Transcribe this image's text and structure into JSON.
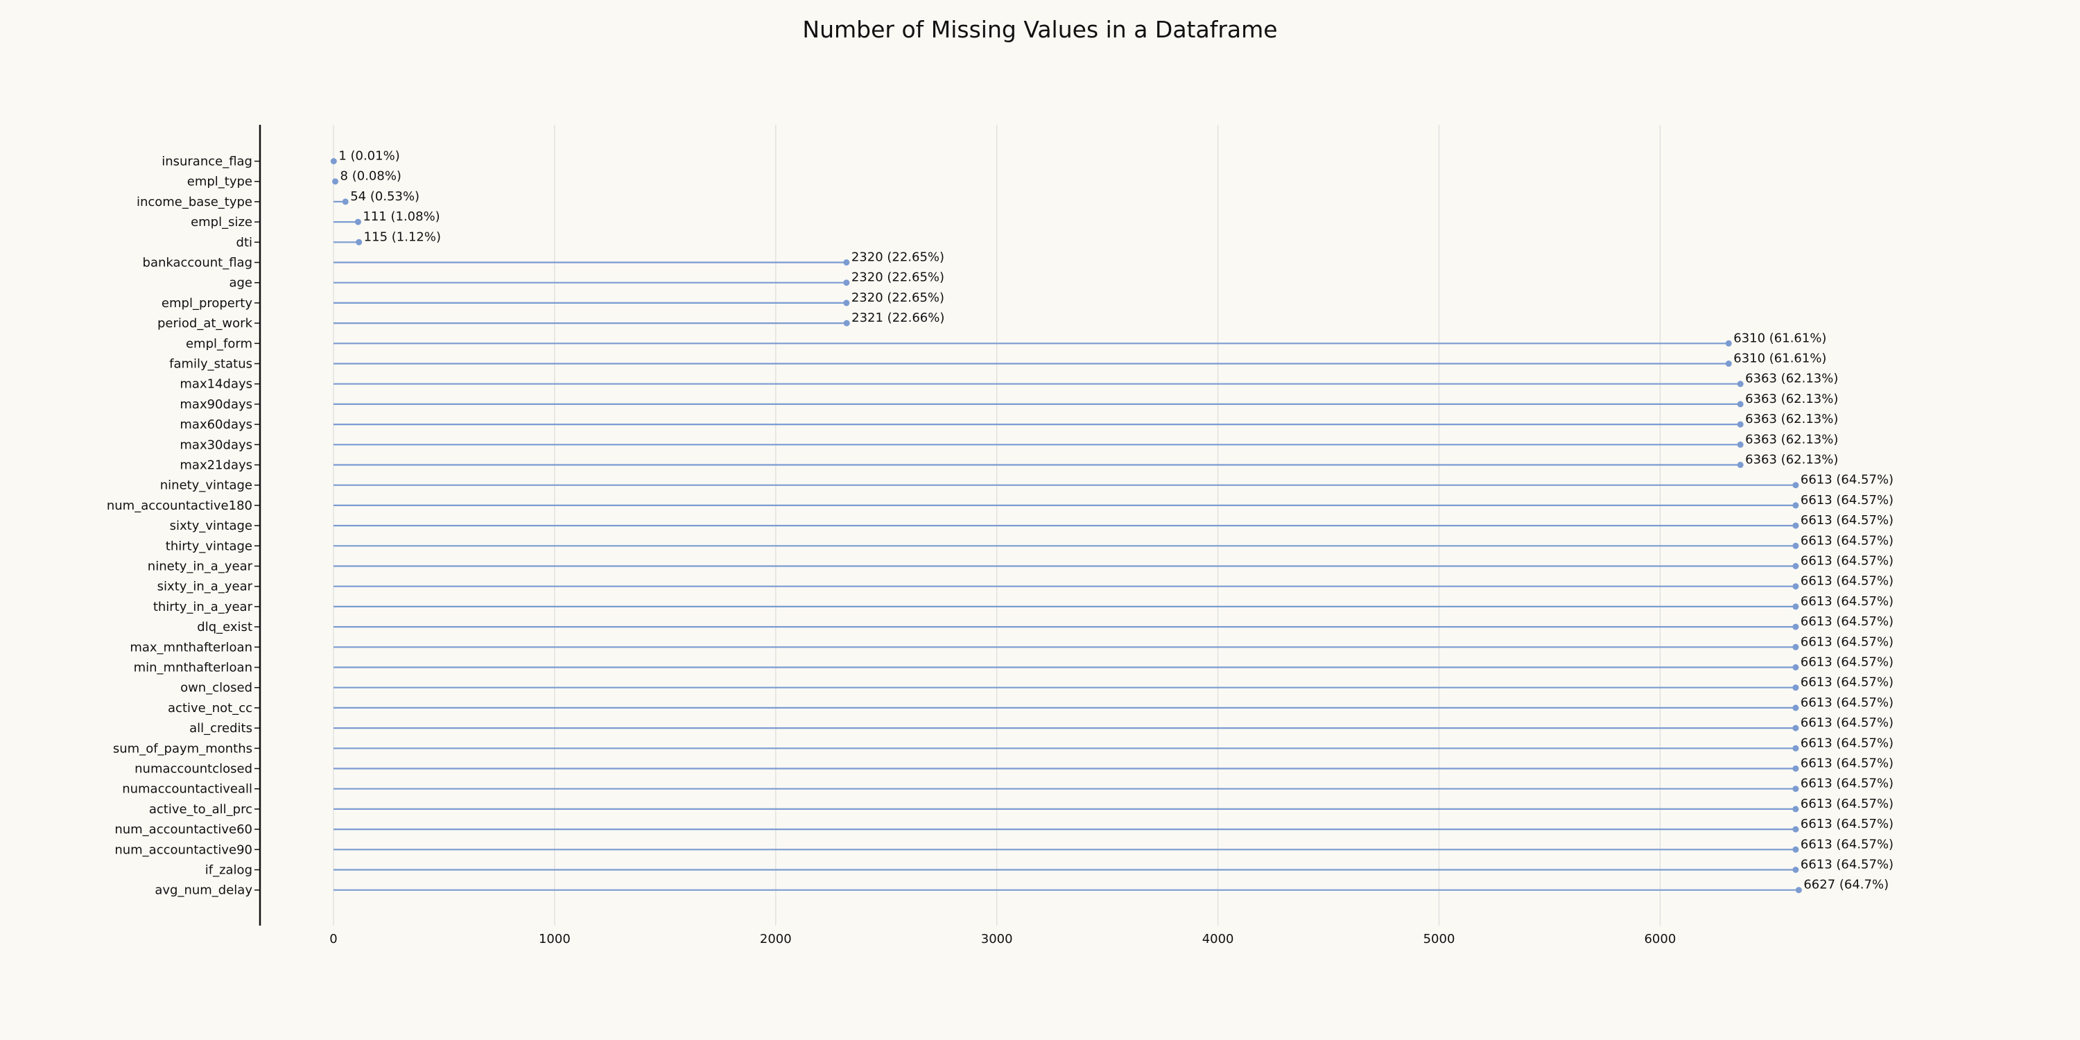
{
  "chart_data": {
    "type": "lollipop",
    "title": "Number of Missing Values in a Dataframe",
    "xlabel": "",
    "ylabel": "",
    "xlim": [
      -330,
      7950
    ],
    "x_ticks": [
      0,
      1000,
      2000,
      3000,
      4000,
      5000,
      6000
    ],
    "grid": "vertical",
    "line_color": "#7b9bd1",
    "marker_color": "#7b9bd1",
    "categories": [
      "insurance_flag",
      "empl_type",
      "income_base_type",
      "empl_size",
      "dti",
      "bankaccount_flag",
      "age",
      "empl_property",
      "period_at_work",
      "empl_form",
      "family_status",
      "max14days",
      "max90days",
      "max60days",
      "max30days",
      "max21days",
      "ninety_vintage",
      "num_accountactive180",
      "sixty_vintage",
      "thirty_vintage",
      "ninety_in_a_year",
      "sixty_in_a_year",
      "thirty_in_a_year",
      "dlq_exist",
      "max_mnthafterloan",
      "min_mnthafterloan",
      "own_closed",
      "active_not_cc",
      "all_credits",
      "sum_of_paym_months",
      "numaccountclosed",
      "numaccountactiveall",
      "active_to_all_prc",
      "num_accountactive60",
      "num_accountactive90",
      "if_zalog",
      "avg_num_delay"
    ],
    "values": [
      1,
      8,
      54,
      111,
      115,
      2320,
      2320,
      2320,
      2321,
      6310,
      6310,
      6363,
      6363,
      6363,
      6363,
      6363,
      6613,
      6613,
      6613,
      6613,
      6613,
      6613,
      6613,
      6613,
      6613,
      6613,
      6613,
      6613,
      6613,
      6613,
      6613,
      6613,
      6613,
      6613,
      6613,
      6613,
      6627
    ],
    "labels": [
      "1 (0.01%)",
      "8 (0.08%)",
      "54 (0.53%)",
      "111 (1.08%)",
      "115 (1.12%)",
      "2320 (22.65%)",
      "2320 (22.65%)",
      "2320 (22.65%)",
      "2321 (22.66%)",
      "6310 (61.61%)",
      "6310 (61.61%)",
      "6363 (62.13%)",
      "6363 (62.13%)",
      "6363 (62.13%)",
      "6363 (62.13%)",
      "6363 (62.13%)",
      "6613 (64.57%)",
      "6613 (64.57%)",
      "6613 (64.57%)",
      "6613 (64.57%)",
      "6613 (64.57%)",
      "6613 (64.57%)",
      "6613 (64.57%)",
      "6613 (64.57%)",
      "6613 (64.57%)",
      "6613 (64.57%)",
      "6613 (64.57%)",
      "6613 (64.57%)",
      "6613 (64.57%)",
      "6613 (64.57%)",
      "6613 (64.57%)",
      "6613 (64.57%)",
      "6613 (64.57%)",
      "6613 (64.57%)",
      "6613 (64.57%)",
      "6613 (64.57%)",
      "6627 (64.7%)"
    ]
  }
}
